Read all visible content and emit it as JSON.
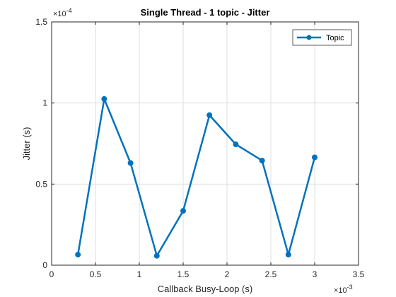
{
  "chart_data": {
    "type": "line",
    "title": "Single Thread - 1 topic - Jitter",
    "xlabel": "Callback Busy-Loop (s)",
    "ylabel": "Jitter (s)",
    "x_exponent": {
      "base": "×10",
      "power": "-3"
    },
    "y_exponent": {
      "base": "×10",
      "power": "-4"
    },
    "xlim": [
      0,
      3.5
    ],
    "ylim": [
      0,
      1.5
    ],
    "x_ticks": [
      "0",
      "0.5",
      "1",
      "1.5",
      "2",
      "2.5",
      "3",
      "3.5"
    ],
    "y_ticks": [
      "0",
      "0.5",
      "1",
      "1.5"
    ],
    "grid": true,
    "legend_position": "top-right",
    "series": [
      {
        "name": "Topic",
        "color": "#0072BD",
        "x": [
          0.3,
          0.6,
          0.9,
          1.2,
          1.5,
          1.8,
          2.1,
          2.4,
          2.7,
          3.0
        ],
        "y": [
          0.065,
          1.025,
          0.63,
          0.058,
          0.335,
          0.925,
          0.745,
          0.645,
          0.065,
          0.665
        ]
      }
    ]
  }
}
